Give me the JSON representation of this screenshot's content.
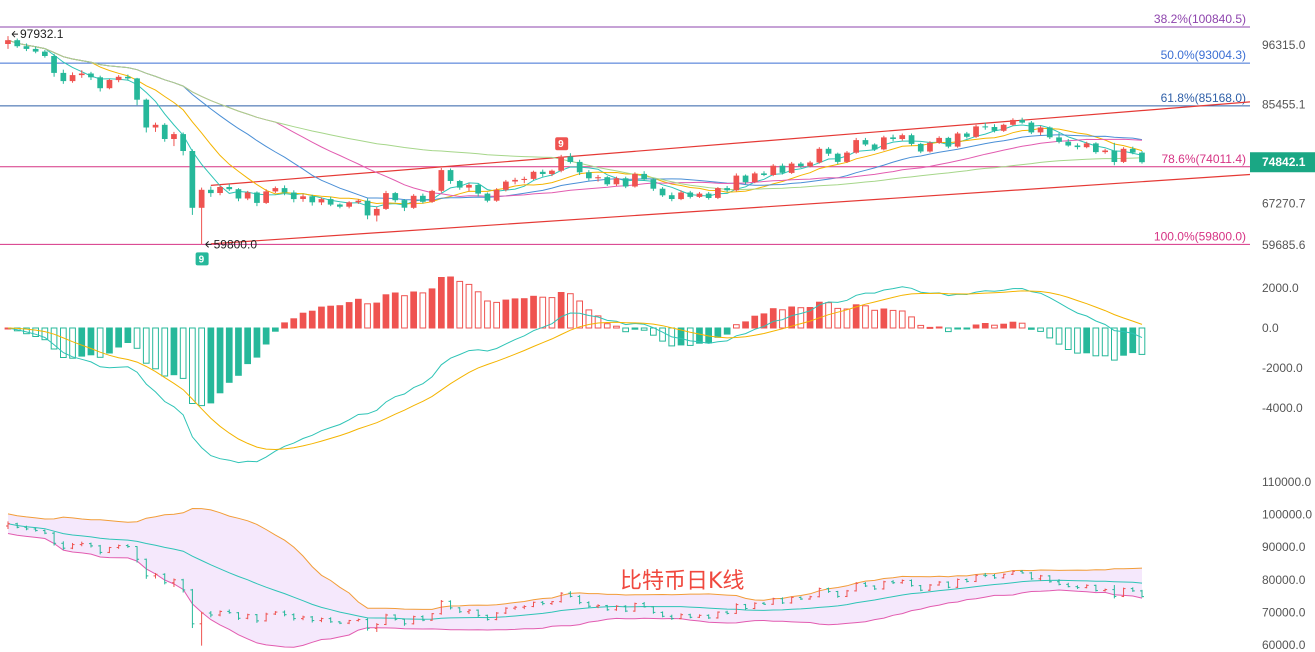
{
  "caption": "比特币日K线",
  "colors": {
    "up": "#ef5350",
    "down": "#26b89a",
    "ma_fast": "#2ec4b6",
    "ma_mid": "#f4b400",
    "ma_slow": "#4a8fd6",
    "ma_slower": "#e25cb0",
    "ma_slowest": "#a6d68a",
    "channel": "#e53935",
    "fib_382": "#8e44ad",
    "fib_500": "#3b6fd4",
    "fib_618": "#2e5fa8",
    "fib_786": "#d63384",
    "fib_100": "#d63384",
    "macd_dif": "#2ec4b6",
    "macd_dea": "#f4b400",
    "boll_upper": "#f29d38",
    "boll_mid": "#2ec4b6",
    "boll_lower": "#e25cb0",
    "boll_fill": "#f3e4fb",
    "price_tag": "#1aa784"
  },
  "chart_data": [
    {
      "type": "candlestick",
      "panel": "price",
      "y_ticks": [
        "96315.0",
        "85455.1",
        "74842.1",
        "67270.7",
        "59685.6"
      ],
      "current_price": "74842.1",
      "fib_levels": [
        {
          "label": "38.2%(100840.5)",
          "price": 100840.5
        },
        {
          "label": "50.0%(93004.3)",
          "price": 93004.3
        },
        {
          "label": "61.8%(85168.0)",
          "price": 85168.0
        },
        {
          "label": "78.6%(74011.4)",
          "price": 74011.4
        },
        {
          "label": "100.0%(59800.0)",
          "price": 59800.0
        }
      ],
      "annotations": {
        "high_label": "97932.1",
        "high_value": 97932.1,
        "low_label": "59800.0",
        "low_value": 59800.0,
        "td_top": "9",
        "td_bottom": "9"
      },
      "ohlc": [
        [
          96500,
          97932,
          95600,
          97200
        ],
        [
          97200,
          97500,
          95800,
          96100
        ],
        [
          96100,
          96600,
          95200,
          95600
        ],
        [
          95600,
          96000,
          94800,
          95100
        ],
        [
          95100,
          95400,
          94000,
          94300
        ],
        [
          94300,
          94700,
          90500,
          91200
        ],
        [
          91200,
          91800,
          89200,
          89700
        ],
        [
          89700,
          91300,
          89400,
          90800
        ],
        [
          90800,
          91700,
          90300,
          91100
        ],
        [
          91100,
          91400,
          89900,
          90400
        ],
        [
          90400,
          90700,
          87800,
          88400
        ],
        [
          88400,
          90100,
          88200,
          89900
        ],
        [
          89900,
          90800,
          89500,
          90500
        ],
        [
          90500,
          90900,
          89800,
          90200
        ],
        [
          90200,
          90300,
          85300,
          86300
        ],
        [
          86300,
          86500,
          80300,
          81200
        ],
        [
          81200,
          82100,
          80400,
          81700
        ],
        [
          81700,
          82000,
          78600,
          79100
        ],
        [
          79100,
          80400,
          77800,
          80000
        ],
        [
          80000,
          80300,
          76100,
          76900
        ],
        [
          76900,
          77200,
          65200,
          66500
        ],
        [
          66500,
          70200,
          59800,
          69800
        ],
        [
          69800,
          70400,
          68500,
          69200
        ],
        [
          69200,
          70600,
          68800,
          70300
        ],
        [
          70300,
          70900,
          69600,
          69900
        ],
        [
          69900,
          70100,
          67700,
          68200
        ],
        [
          68200,
          69600,
          67900,
          69300
        ],
        [
          69300,
          69500,
          66800,
          67400
        ],
        [
          67400,
          69900,
          67200,
          69500
        ],
        [
          69500,
          70400,
          69200,
          70100
        ],
        [
          70100,
          70600,
          68800,
          69300
        ],
        [
          69300,
          69700,
          67500,
          68100
        ],
        [
          68100,
          69000,
          67600,
          68600
        ],
        [
          68600,
          68900,
          66900,
          67500
        ],
        [
          67500,
          68400,
          67000,
          68100
        ],
        [
          68100,
          68500,
          66800,
          67100
        ],
        [
          67100,
          67300,
          66400,
          66700
        ],
        [
          66700,
          67700,
          66400,
          67500
        ],
        [
          67500,
          68100,
          67200,
          67800
        ],
        [
          67800,
          68200,
          64400,
          65100
        ],
        [
          65100,
          66700,
          64000,
          66300
        ],
        [
          66300,
          69600,
          66100,
          69200
        ],
        [
          69200,
          69400,
          67500,
          67900
        ],
        [
          67900,
          68100,
          65900,
          66500
        ],
        [
          66500,
          69000,
          66300,
          68700
        ],
        [
          68700,
          69100,
          67300,
          67600
        ],
        [
          67600,
          69800,
          67400,
          69600
        ],
        [
          69600,
          73800,
          69300,
          73400
        ],
        [
          73400,
          73700,
          70900,
          71400
        ],
        [
          71400,
          71600,
          69800,
          70200
        ],
        [
          70200,
          71000,
          69500,
          70700
        ],
        [
          70700,
          70900,
          68600,
          69100
        ],
        [
          69100,
          69300,
          67500,
          67800
        ],
        [
          67800,
          70100,
          67600,
          69800
        ],
        [
          69800,
          71600,
          69500,
          71300
        ],
        [
          71300,
          72000,
          70800,
          71600
        ],
        [
          71600,
          72200,
          71000,
          71800
        ],
        [
          71800,
          73300,
          71600,
          73100
        ],
        [
          73100,
          73500,
          72200,
          72700
        ],
        [
          72700,
          73500,
          72300,
          73300
        ],
        [
          73300,
          76200,
          73000,
          75900
        ],
        [
          75900,
          76500,
          74600,
          74900
        ],
        [
          74900,
          75300,
          72500,
          73000
        ],
        [
          73000,
          73400,
          71500,
          71900
        ],
        [
          71900,
          72500,
          71300,
          72100
        ],
        [
          72100,
          72300,
          70500,
          70800
        ],
        [
          70800,
          72200,
          70500,
          71900
        ],
        [
          71900,
          72200,
          70100,
          70400
        ],
        [
          70400,
          73000,
          70200,
          72700
        ],
        [
          72700,
          73200,
          71500,
          71700
        ],
        [
          71700,
          71900,
          69600,
          70000
        ],
        [
          70000,
          70300,
          68500,
          68800
        ],
        [
          68800,
          69300,
          67700,
          68100
        ],
        [
          68100,
          69700,
          67900,
          69300
        ],
        [
          69300,
          69600,
          68200,
          68500
        ],
        [
          68500,
          69400,
          68300,
          69100
        ],
        [
          69100,
          69400,
          68000,
          68300
        ],
        [
          68300,
          70300,
          68100,
          70100
        ],
        [
          70100,
          70500,
          69400,
          69700
        ],
        [
          69700,
          72800,
          69500,
          72400
        ],
        [
          72400,
          72600,
          70800,
          71200
        ],
        [
          71200,
          73100,
          71000,
          72800
        ],
        [
          72800,
          73200,
          72300,
          72500
        ],
        [
          72500,
          74500,
          72300,
          74200
        ],
        [
          74200,
          74600,
          72600,
          72900
        ],
        [
          72900,
          74900,
          72700,
          74600
        ],
        [
          74600,
          74900,
          73800,
          74100
        ],
        [
          74100,
          75100,
          73900,
          74800
        ],
        [
          74800,
          77600,
          74600,
          77300
        ],
        [
          77300,
          77600,
          76000,
          76400
        ],
        [
          76400,
          76600,
          74500,
          74900
        ],
        [
          74900,
          76900,
          74700,
          76600
        ],
        [
          76600,
          79300,
          76400,
          78900
        ],
        [
          78900,
          79300,
          77800,
          78100
        ],
        [
          78100,
          78300,
          76900,
          77200
        ],
        [
          77200,
          79700,
          77000,
          79400
        ],
        [
          79400,
          79900,
          78700,
          79100
        ],
        [
          79100,
          80100,
          78800,
          79800
        ],
        [
          79800,
          80100,
          77900,
          78200
        ],
        [
          78200,
          78400,
          76500,
          76800
        ],
        [
          76800,
          78700,
          76600,
          78400
        ],
        [
          78400,
          79600,
          78200,
          79300
        ],
        [
          79300,
          79500,
          77400,
          77700
        ],
        [
          77700,
          80400,
          77500,
          80100
        ],
        [
          80100,
          80400,
          79200,
          79500
        ],
        [
          79500,
          81700,
          79300,
          81400
        ],
        [
          81400,
          82100,
          80800,
          81300
        ],
        [
          81300,
          81800,
          80300,
          80600
        ],
        [
          80600,
          81900,
          80400,
          81700
        ],
        [
          81700,
          82900,
          81500,
          82600
        ],
        [
          82600,
          83000,
          81900,
          82100
        ],
        [
          82100,
          82400,
          80000,
          80300
        ],
        [
          80300,
          81500,
          79800,
          81200
        ],
        [
          81200,
          81400,
          79100,
          79400
        ],
        [
          79400,
          80200,
          78300,
          78600
        ],
        [
          78600,
          79100,
          77700,
          77900
        ],
        [
          77900,
          78300,
          77200,
          77600
        ],
        [
          77600,
          78600,
          77400,
          78300
        ],
        [
          78300,
          78500,
          76400,
          76700
        ],
        [
          76700,
          77300,
          76400,
          77000
        ],
        [
          77000,
          78400,
          74300,
          74900
        ],
        [
          74900,
          77600,
          74700,
          77300
        ],
        [
          77300,
          77700,
          76300,
          76600
        ],
        [
          76600,
          76900,
          74600,
          74842
        ]
      ]
    },
    {
      "type": "bar",
      "panel": "macd",
      "y_ticks": [
        "2000.0",
        "0.0",
        "-2000.0",
        "-4000.0"
      ]
    },
    {
      "type": "line",
      "panel": "bollinger",
      "y_ticks": [
        "110000.0",
        "100000.0",
        "90000.0",
        "80000.0",
        "70000.0",
        "60000.0"
      ]
    }
  ]
}
